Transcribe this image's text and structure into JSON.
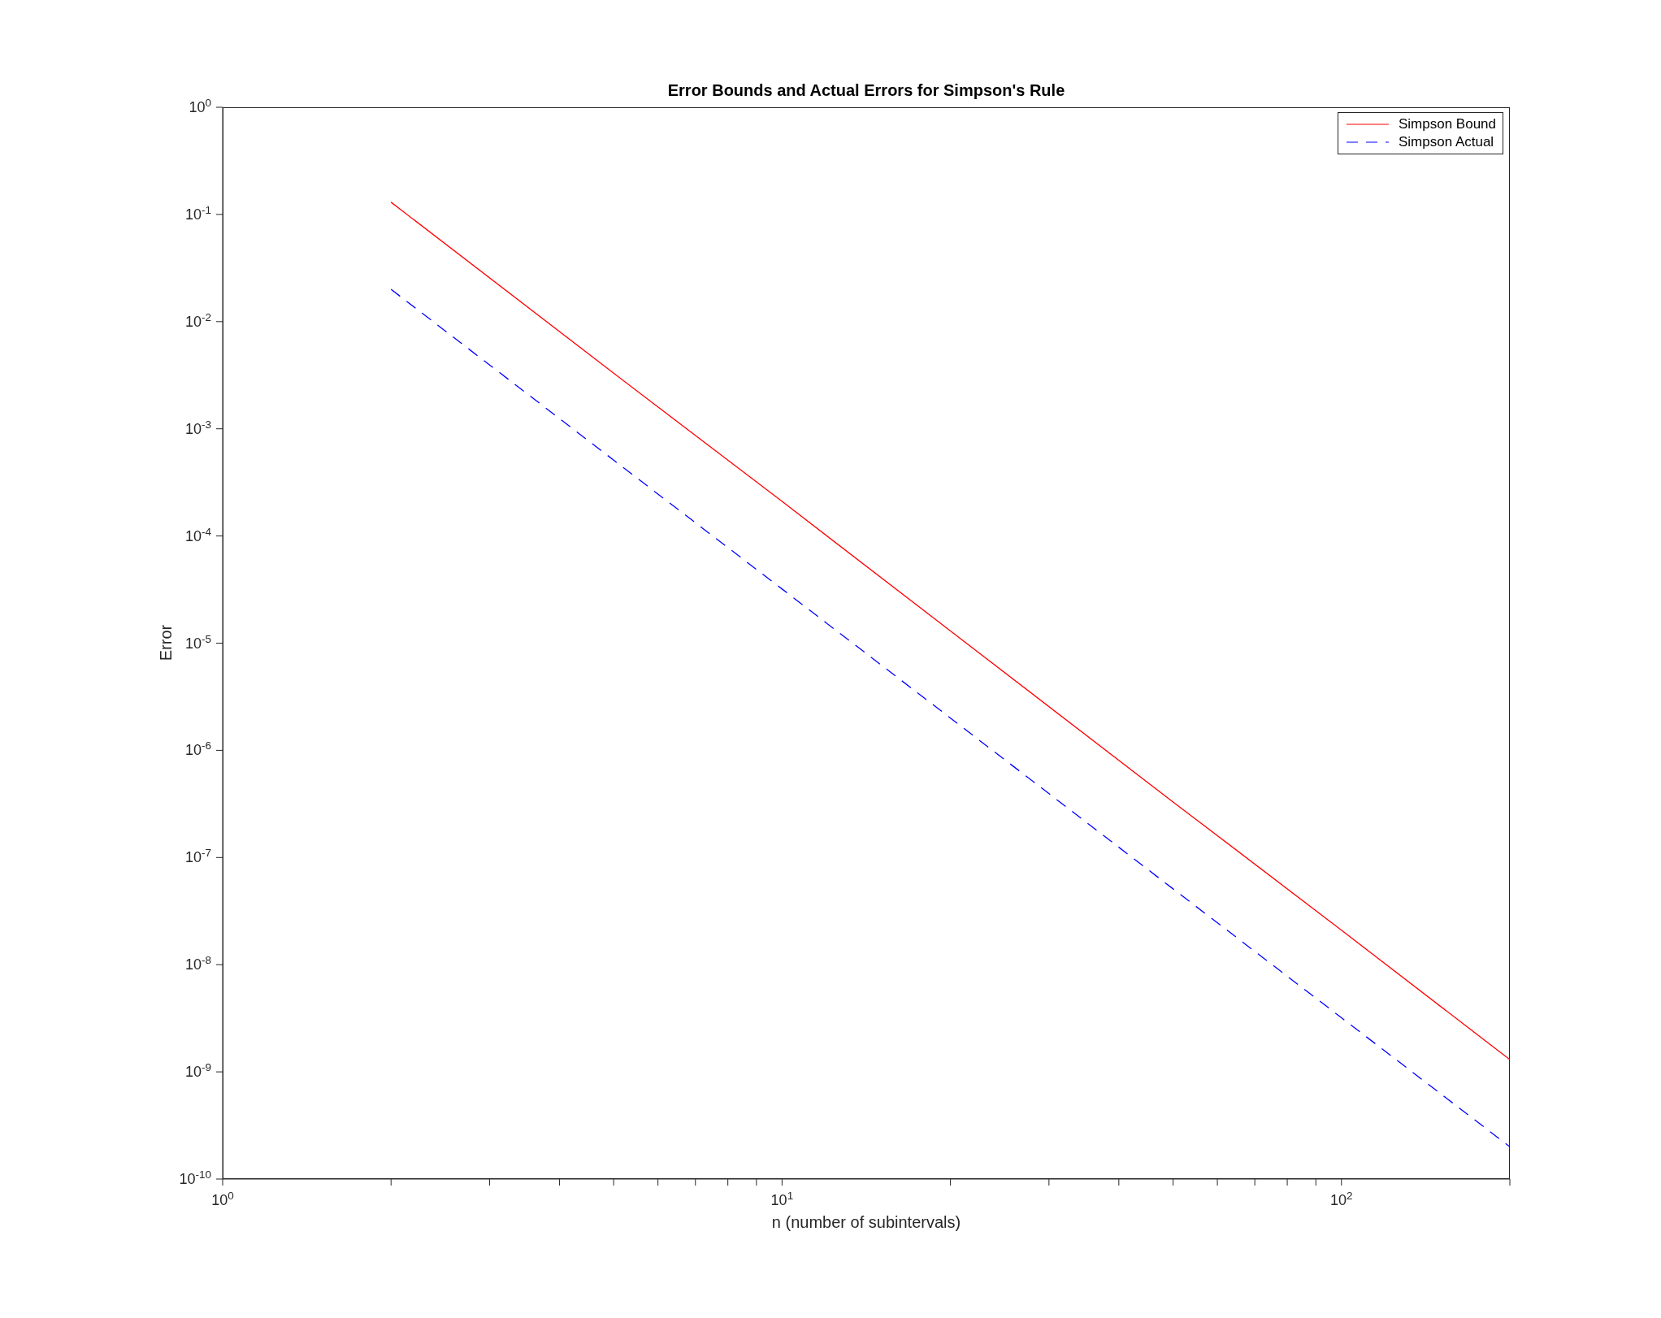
{
  "chart_data": {
    "type": "line",
    "title": "Error Bounds and Actual Errors for Simpson's Rule",
    "xlabel": "n (number of subintervals)",
    "ylabel": "Error",
    "x": [
      2,
      5,
      10,
      20,
      50,
      100,
      200
    ],
    "series": [
      {
        "name": "Simpson Bound",
        "color": "#ff0000",
        "line_style": "solid",
        "values": [
          0.13,
          0.0033,
          0.00021,
          1.3e-05,
          3.3e-07,
          2.1e-08,
          1.3e-09
        ]
      },
      {
        "name": "Simpson Actual",
        "color": "#0000ff",
        "line_style": "dashed",
        "values": [
          0.02,
          0.00051,
          3.2e-05,
          2e-06,
          5.1e-08,
          3.2e-09,
          2e-10
        ]
      }
    ],
    "log": "xy",
    "xlim": [
      1,
      200
    ],
    "ylim": [
      1e-10,
      1
    ],
    "xticks": [
      {
        "value": 1,
        "label": "10$^{0}$"
      },
      {
        "value": 2,
        "label": null
      },
      {
        "value": 3,
        "label": null
      },
      {
        "value": 4,
        "label": null
      },
      {
        "value": 5,
        "label": null
      },
      {
        "value": 6,
        "label": null
      },
      {
        "value": 7,
        "label": null
      },
      {
        "value": 8,
        "label": null
      },
      {
        "value": 9,
        "label": null
      },
      {
        "value": 10,
        "label": "10$^{1}$"
      },
      {
        "value": 20,
        "label": null
      },
      {
        "value": 30,
        "label": null
      },
      {
        "value": 40,
        "label": null
      },
      {
        "value": 50,
        "label": null
      },
      {
        "value": 60,
        "label": null
      },
      {
        "value": 70,
        "label": null
      },
      {
        "value": 80,
        "label": null
      },
      {
        "value": 90,
        "label": null
      },
      {
        "value": 100,
        "label": "10$^{2}$"
      },
      {
        "value": 200,
        "label": null
      }
    ],
    "yticks": [
      {
        "value": 1e-10,
        "label": "10$^{-10}$"
      },
      {
        "value": 1e-09,
        "label": "10$^{-9}$"
      },
      {
        "value": 1e-08,
        "label": "10$^{-8}$"
      },
      {
        "value": 1e-07,
        "label": "10$^{-7}$"
      },
      {
        "value": 1e-06,
        "label": "10$^{-6}$"
      },
      {
        "value": 1e-05,
        "label": "10$^{-5}$"
      },
      {
        "value": 0.0001,
        "label": "10$^{-4}$"
      },
      {
        "value": 0.001,
        "label": "10$^{-3}$"
      },
      {
        "value": 0.01,
        "label": "10$^{-2}$"
      },
      {
        "value": 0.1,
        "label": "10$^{-1}$"
      },
      {
        "value": 1,
        "label": "10$^{0}$"
      }
    ],
    "legend": "top right",
    "marker": "none"
  }
}
